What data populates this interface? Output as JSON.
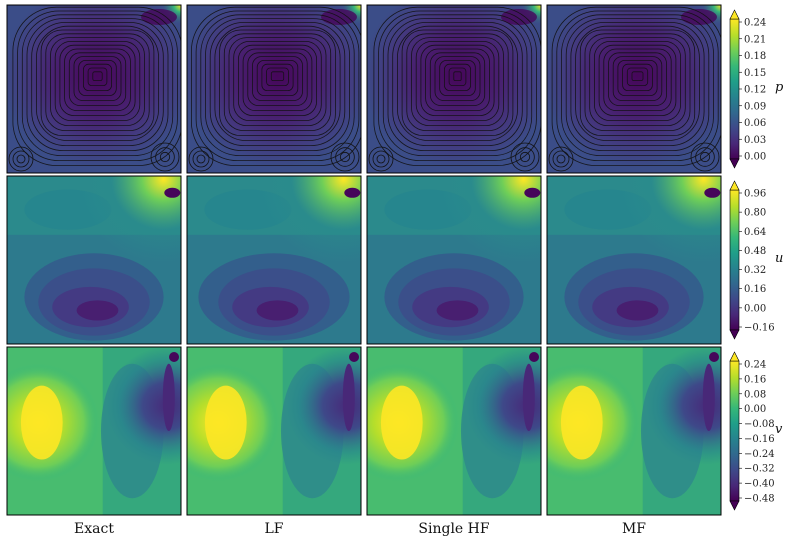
{
  "columns": [
    "Exact",
    "LF",
    "Single HF",
    "MF"
  ],
  "chart_data": {
    "type": "heatmap",
    "grid": false,
    "rows": [
      {
        "field": "p",
        "streamlines": true,
        "colorbar_ticks": [
          "0.24",
          "0.21",
          "0.18",
          "0.15",
          "0.12",
          "0.09",
          "0.06",
          "0.03",
          "0.00"
        ],
        "vmin": 0.0,
        "vmax": 0.24
      },
      {
        "field": "u",
        "streamlines": false,
        "colorbar_ticks": [
          "0.96",
          "0.80",
          "0.64",
          "0.48",
          "0.32",
          "0.16",
          "0.00",
          "−0.16"
        ],
        "vmin": -0.16,
        "vmax": 0.96
      },
      {
        "field": "v",
        "streamlines": false,
        "colorbar_ticks": [
          "0.24",
          "0.16",
          "0.08",
          "0.00",
          "−0.08",
          "−0.16",
          "−0.24",
          "−0.32",
          "−0.40",
          "−0.48"
        ],
        "vmin": -0.48,
        "vmax": 0.24
      }
    ],
    "colormap": "viridis",
    "colors": {
      "viridis": [
        "#440154",
        "#482878",
        "#3e4989",
        "#31688e",
        "#26828e",
        "#1f9e89",
        "#35b779",
        "#6ece58",
        "#b5de2b",
        "#fde725"
      ]
    }
  }
}
